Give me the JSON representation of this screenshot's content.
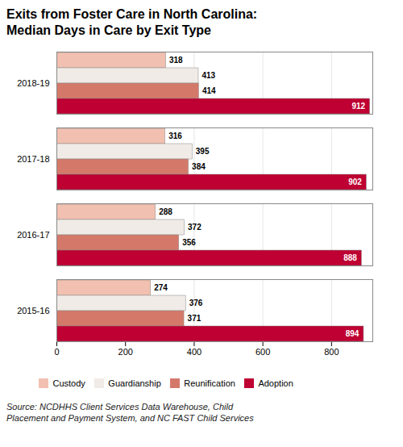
{
  "chart_data": {
    "type": "bar",
    "orientation": "horizontal",
    "title": "Exits from Foster Care in North Carolina:\nMedian Days in Care by Exit Type",
    "categories": [
      "2015-16",
      "2016-17",
      "2017-18",
      "2018-19"
    ],
    "series": [
      {
        "name": "Custody",
        "color": "#f2c0b0",
        "values": [
          274,
          288,
          316,
          318
        ]
      },
      {
        "name": "Guardianship",
        "color": "#f0ebe6",
        "values": [
          376,
          372,
          395,
          413
        ]
      },
      {
        "name": "Reunification",
        "color": "#d4796a",
        "values": [
          371,
          356,
          384,
          414
        ]
      },
      {
        "name": "Adoption",
        "color": "#be0032",
        "values": [
          894,
          888,
          902,
          912
        ]
      }
    ],
    "xlim": [
      0,
      920
    ],
    "xticks": [
      0,
      200,
      400,
      600,
      800
    ],
    "grid": true,
    "legend": "bottom",
    "data_labels": true,
    "annotations": [
      "Source: NCDHHS Client Services Data Warehouse, Child\nPlacement and Payment System, and NC FAST Child Services"
    ]
  }
}
